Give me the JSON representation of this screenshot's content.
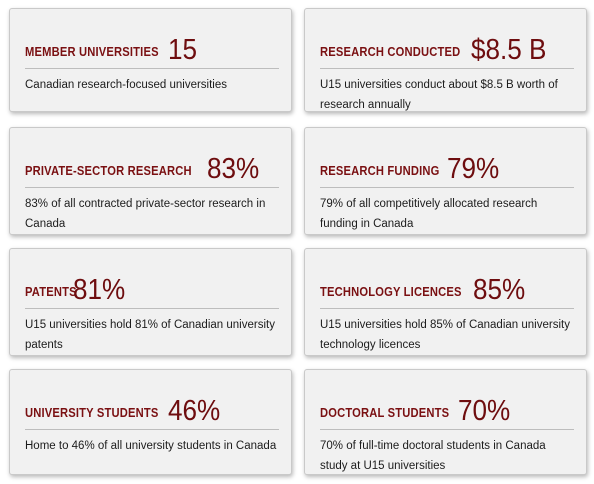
{
  "cards": [
    {
      "label": "MEMBER UNIVERSITIES",
      "value": "15",
      "description": "Canadian research-focused universities"
    },
    {
      "label": "RESEARCH CONDUCTED",
      "value": "$8.5 B",
      "description": "U15 universities conduct about $8.5 B worth of research annually"
    },
    {
      "label": "PRIVATE-SECTOR RESEARCH",
      "value": "83%",
      "description": "83% of all contracted private-sector research in Canada"
    },
    {
      "label": "RESEARCH FUNDING",
      "value": "79%",
      "description": "79% of all competitively allocated research funding in Canada"
    },
    {
      "label": "PATENTS",
      "value": "81%",
      "description": "U15 universities hold 81% of Canadian university patents"
    },
    {
      "label": "TECHNOLOGY LICENCES",
      "value": "85%",
      "description": "U15 universities hold 85% of Canadian university technology licences"
    },
    {
      "label": "UNIVERSITY STUDENTS",
      "value": "46%",
      "description": "Home to 46% of all university students in Canada"
    },
    {
      "label": "DOCTORAL STUDENTS",
      "value": "70%",
      "description": "70% of full-time doctoral students in Canada study at U15 universities"
    }
  ],
  "colors": {
    "accent": "#7a1012",
    "card_background": "#f1f1f1",
    "text": "#1c1c1c"
  }
}
